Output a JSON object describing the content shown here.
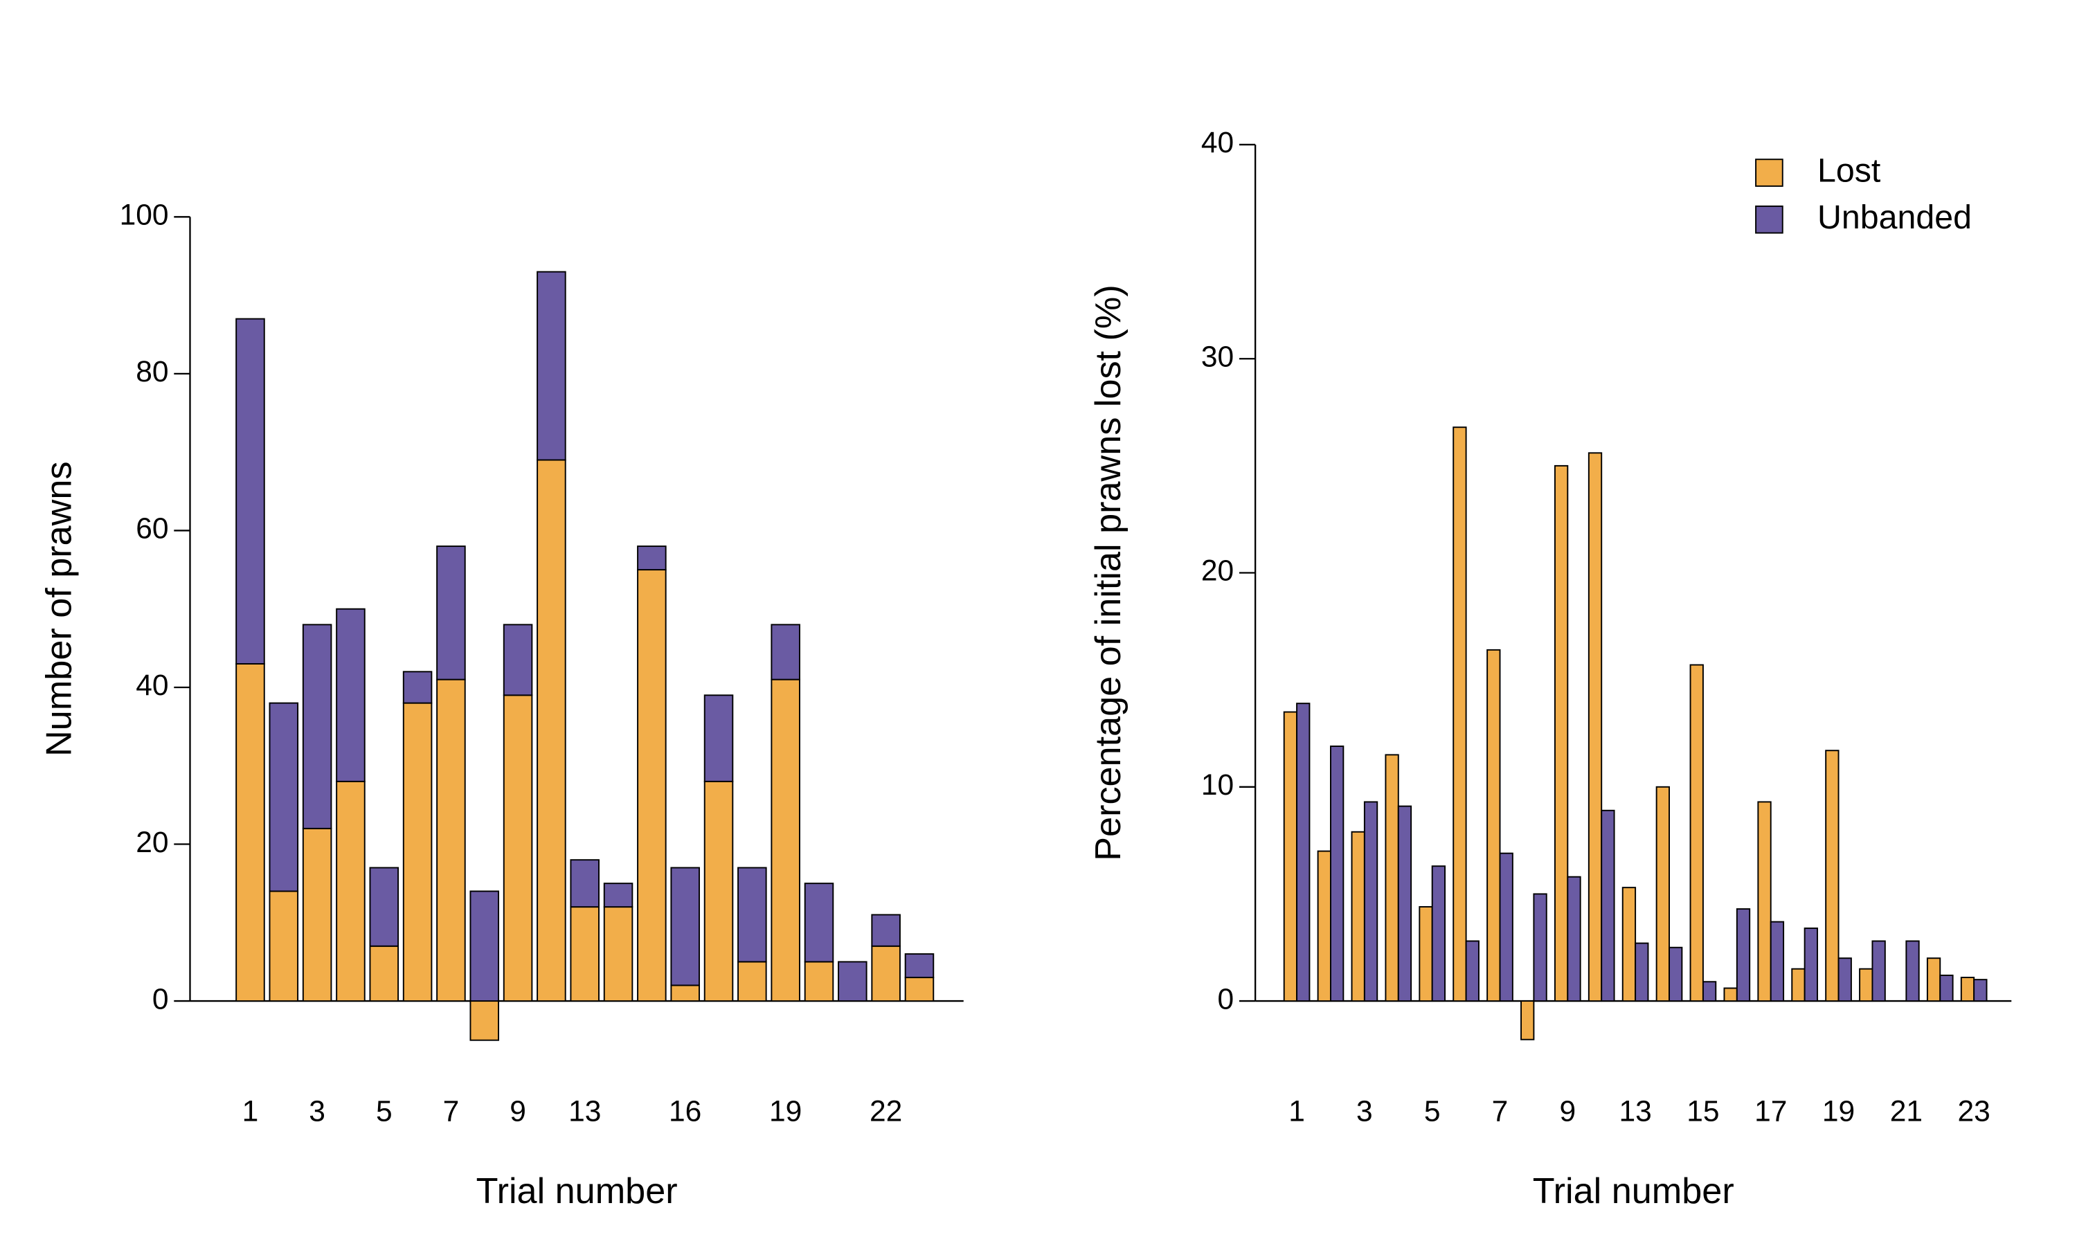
{
  "chart_data": [
    {
      "type": "bar",
      "stacked": true,
      "y_label": "Number of prawns",
      "x_label": "Trial number",
      "categories": [
        "1",
        null,
        "3",
        null,
        "5",
        null,
        "7",
        null,
        "9",
        null,
        "13",
        null,
        null,
        "16",
        null,
        null,
        "19",
        null,
        null,
        "22",
        null
      ],
      "series": [
        {
          "color": "#f2ae4a",
          "values": [
            43,
            14,
            22,
            28,
            7,
            38,
            41,
            -5,
            39,
            69,
            12,
            12,
            55,
            2,
            28,
            5,
            41,
            5,
            0,
            7,
            3
          ]
        },
        {
          "color": "#6a5ba3",
          "values": [
            44,
            24,
            26,
            22,
            10,
            4,
            17,
            14,
            9,
            24,
            6,
            3,
            3,
            15,
            11,
            12,
            7,
            10,
            5,
            4,
            3
          ]
        }
      ],
      "ylim": [
        0,
        100
      ],
      "yticks": [
        0,
        20,
        40,
        60,
        80,
        100
      ]
    },
    {
      "type": "bar",
      "stacked": false,
      "y_label": "Percentage of initial prawns lost (%)",
      "x_label": "Trial number",
      "categories": [
        "1",
        null,
        "3",
        null,
        "5",
        null,
        "7",
        null,
        "9",
        null,
        "13",
        null,
        "15",
        null,
        "17",
        null,
        "19",
        null,
        "21",
        null,
        "23"
      ],
      "series": [
        {
          "name": "Lost",
          "color": "#f2ae4a",
          "values": [
            13.5,
            7.0,
            7.9,
            11.5,
            4.4,
            26.8,
            16.4,
            -1.8,
            25.0,
            25.6,
            5.3,
            10.0,
            15.7,
            0.6,
            9.3,
            1.5,
            11.7,
            1.5,
            0,
            2.0,
            1.1
          ]
        },
        {
          "name": "Unbanded",
          "color": "#6a5ba3",
          "values": [
            13.9,
            11.9,
            9.3,
            9.1,
            6.3,
            2.8,
            6.9,
            5.0,
            5.8,
            8.9,
            2.7,
            2.5,
            0.9,
            4.3,
            3.7,
            3.4,
            2.0,
            2.8,
            2.8,
            1.2,
            1.0
          ]
        }
      ],
      "ylim": [
        0,
        40
      ],
      "yticks": [
        0,
        10,
        20,
        30,
        40
      ],
      "legend": "top-right"
    }
  ]
}
